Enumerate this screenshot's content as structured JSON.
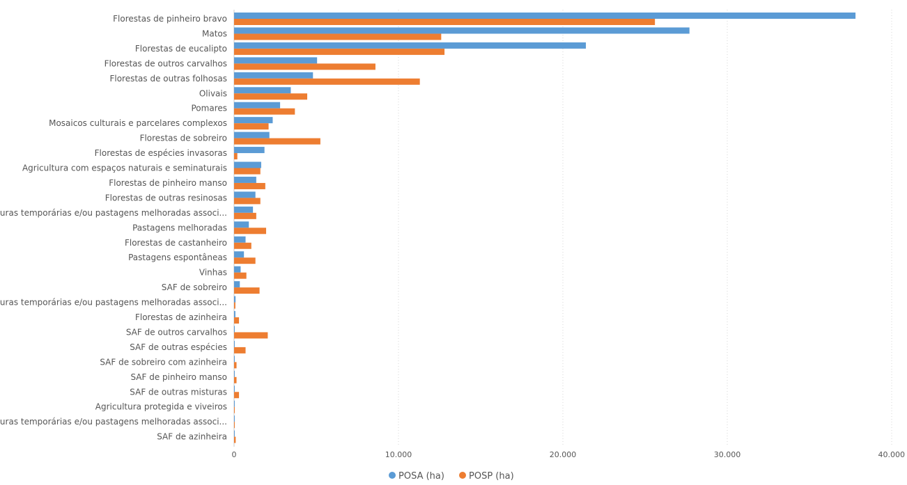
{
  "chart_data": {
    "type": "bar",
    "orientation": "horizontal",
    "categories": [
      "Florestas de pinheiro bravo",
      "Matos",
      "Florestas de eucalipto",
      "Florestas de outros carvalhos",
      "Florestas de outras folhosas",
      "Olivais",
      "Pomares",
      "Mosaicos culturais e parcelares complexos",
      "Florestas de sobreiro",
      "Florestas de espécies invasoras",
      "Agricultura com espaços naturais e seminaturais",
      "Florestas de pinheiro manso",
      "Florestas de outras resinosas",
      "Culturas temporárias e/ou pastagens melhoradas associ...",
      "Pastagens melhoradas",
      "Florestas de castanheiro",
      "Pastagens espontâneas",
      "Vinhas",
      "SAF de sobreiro",
      "Culturas temporárias e/ou pastagens melhoradas associ...",
      "Florestas de azinheira",
      "SAF de outros carvalhos",
      "SAF de outras espécies",
      "SAF de sobreiro com azinheira",
      "SAF de pinheiro manso",
      "SAF de outras misturas",
      "Agricultura protegida e viveiros",
      "Culturas temporárias e/ou pastagens melhoradas associ...",
      "SAF de azinheira"
    ],
    "series": [
      {
        "name": "POSA (ha)",
        "color": "#5B9BD5",
        "values": [
          37800,
          27700,
          21400,
          5050,
          4800,
          3450,
          2800,
          2350,
          2150,
          1850,
          1650,
          1350,
          1300,
          1150,
          900,
          700,
          600,
          400,
          350,
          90,
          80,
          40,
          30,
          30,
          25,
          20,
          15,
          10,
          10
        ]
      },
      {
        "name": "POSP (ha)",
        "color": "#ED7D31",
        "values": [
          25600,
          12600,
          12800,
          8600,
          11300,
          4450,
          3700,
          2100,
          5250,
          200,
          1600,
          1900,
          1600,
          1350,
          1950,
          1050,
          1300,
          750,
          1550,
          80,
          300,
          2050,
          700,
          150,
          150,
          300,
          15,
          30,
          100
        ]
      }
    ],
    "xlim": [
      0,
      40000
    ],
    "xticks": [
      0,
      10000,
      20000,
      30000,
      40000
    ],
    "xtick_labels": [
      "0",
      "10.000",
      "20.000",
      "30.000",
      "40.000"
    ],
    "grid": true,
    "legend_position": "bottom-center"
  }
}
